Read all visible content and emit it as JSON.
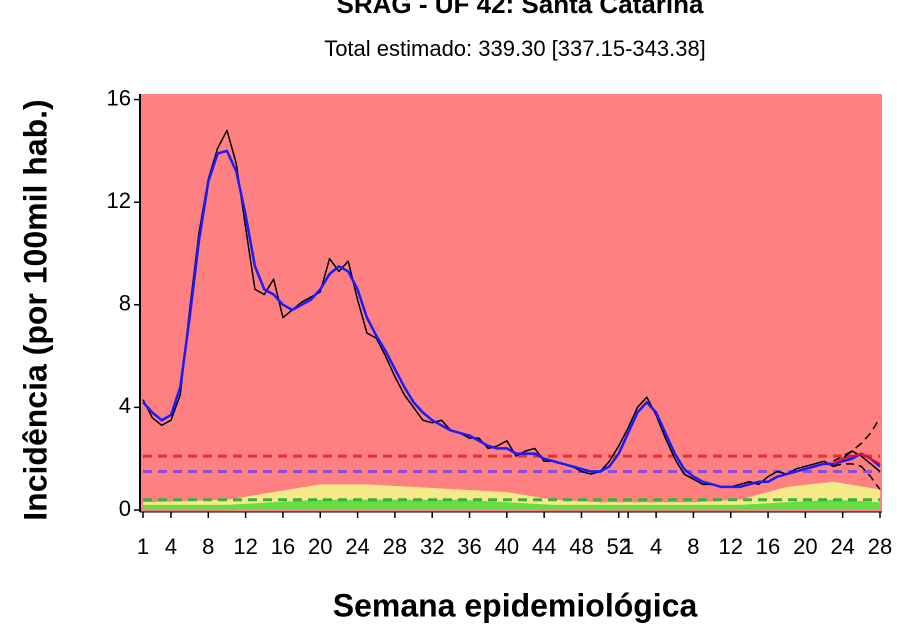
{
  "chart_data": {
    "type": "line",
    "title": "SRAG - UF 42: Santa Catarina",
    "subtitle": "Total estimado: 339.30 [337.15-343.38]",
    "x_label": "Semana epidemiológica",
    "y_label": "Incidência (por 100mil hab.)",
    "background": "#ff8080",
    "xlim": [
      1,
      80
    ],
    "ylim": [
      0,
      16.1
    ],
    "xticks": [
      1,
      4,
      8,
      12,
      16,
      20,
      24,
      28,
      32,
      36,
      40,
      44,
      48,
      52,
      {
        "value": 53,
        "label": "1"
      },
      {
        "value": 56,
        "label": "4"
      },
      {
        "value": 60,
        "label": "8"
      },
      {
        "value": 64,
        "label": "12"
      },
      {
        "value": 68,
        "label": "16"
      },
      {
        "value": 72,
        "label": "20"
      },
      {
        "value": 76,
        "label": "24"
      },
      {
        "value": 80,
        "label": "28"
      }
    ],
    "yticks": [
      0,
      4,
      8,
      12,
      16
    ],
    "hlines": [
      {
        "value": 2.1,
        "color": "#e83030"
      },
      {
        "value": 1.5,
        "color": "#8a4fd8"
      },
      {
        "value": 0.4,
        "color": "#3ab03a"
      }
    ],
    "areas": [
      {
        "color": "#f6e98a",
        "x": [
          1,
          10,
          15,
          20,
          25,
          30,
          35,
          40,
          45,
          50,
          55,
          60,
          65,
          70,
          75,
          80
        ],
        "values": [
          0.3,
          0.4,
          0.7,
          1.0,
          1.0,
          0.9,
          0.8,
          0.7,
          0.4,
          0.3,
          0.3,
          0.3,
          0.4,
          0.9,
          1.1,
          0.8
        ]
      },
      {
        "color": "#66dd44",
        "x": [
          1,
          10,
          15,
          20,
          25,
          30,
          35,
          40,
          45,
          50,
          55,
          60,
          65,
          70,
          75,
          80
        ],
        "values": [
          0.2,
          0.2,
          0.3,
          0.4,
          0.4,
          0.4,
          0.4,
          0.3,
          0.2,
          0.2,
          0.2,
          0.2,
          0.2,
          0.3,
          0.4,
          0.3
        ]
      }
    ],
    "x": [
      1,
      2,
      3,
      4,
      5,
      6,
      7,
      8,
      9,
      10,
      11,
      12,
      13,
      14,
      15,
      16,
      17,
      18,
      19,
      20,
      21,
      22,
      23,
      24,
      25,
      26,
      27,
      28,
      29,
      30,
      31,
      32,
      33,
      34,
      35,
      36,
      37,
      38,
      39,
      40,
      41,
      42,
      43,
      44,
      45,
      46,
      47,
      48,
      49,
      50,
      51,
      52,
      53,
      54,
      55,
      56,
      57,
      58,
      59,
      60,
      61,
      62,
      63,
      64,
      65,
      66,
      67,
      68,
      69,
      70,
      71,
      72,
      73,
      74,
      75,
      76,
      77,
      78,
      79,
      80
    ],
    "series": [
      {
        "color": "#000000",
        "width": 1.5,
        "values": [
          4.3,
          3.6,
          3.3,
          3.5,
          4.5,
          7.8,
          10.8,
          12.9,
          14.1,
          14.8,
          13.5,
          11.0,
          8.6,
          8.4,
          9.0,
          7.5,
          7.8,
          8.1,
          8.3,
          8.5,
          9.8,
          9.3,
          9.7,
          8.2,
          6.9,
          6.7,
          6.0,
          5.2,
          4.5,
          4.0,
          3.5,
          3.4,
          3.5,
          3.1,
          3.0,
          2.8,
          2.8,
          2.4,
          2.5,
          2.7,
          2.1,
          2.3,
          2.4,
          1.9,
          1.9,
          1.8,
          1.7,
          1.5,
          1.4,
          1.5,
          1.9,
          2.5,
          3.2,
          4.0,
          4.4,
          3.7,
          2.8,
          2.0,
          1.4,
          1.2,
          1.0,
          1.0,
          0.9,
          0.9,
          1.0,
          1.1,
          1.0,
          1.3,
          1.5,
          1.4,
          1.6,
          1.7,
          1.8,
          1.9,
          1.7,
          2.0,
          2.3,
          2.1,
          1.8,
          1.5
        ]
      },
      {
        "color": "#1a1aff",
        "width": 2.5,
        "values": [
          4.2,
          3.8,
          3.5,
          3.7,
          4.8,
          7.5,
          10.5,
          12.8,
          13.9,
          14.0,
          13.2,
          11.5,
          9.5,
          8.6,
          8.4,
          8.0,
          7.8,
          8.0,
          8.2,
          8.6,
          9.2,
          9.5,
          9.3,
          8.6,
          7.5,
          6.8,
          6.2,
          5.5,
          4.8,
          4.2,
          3.8,
          3.5,
          3.3,
          3.1,
          3.0,
          2.9,
          2.7,
          2.5,
          2.4,
          2.4,
          2.2,
          2.2,
          2.2,
          2.0,
          1.9,
          1.8,
          1.7,
          1.6,
          1.5,
          1.5,
          1.7,
          2.2,
          3.0,
          3.8,
          4.2,
          3.8,
          3.0,
          2.2,
          1.6,
          1.3,
          1.1,
          1.0,
          0.9,
          0.9,
          0.9,
          1.0,
          1.1,
          1.1,
          1.3,
          1.4,
          1.5,
          1.6,
          1.7,
          1.8,
          1.8,
          1.9,
          2.0,
          2.2,
          2.0,
          1.7
        ]
      },
      {
        "color": "#e8102a",
        "width": 2,
        "x": [
          75,
          76,
          77,
          78,
          79,
          80
        ],
        "values": [
          1.8,
          2.0,
          2.1,
          2.2,
          2.0,
          1.8
        ]
      },
      {
        "color": "#000000",
        "width": 1.5,
        "dash": true,
        "x": [
          75,
          76,
          77,
          78,
          79,
          80
        ],
        "values": [
          1.9,
          2.1,
          2.3,
          2.6,
          3.0,
          3.6
        ]
      },
      {
        "color": "#000000",
        "width": 1.5,
        "dash": true,
        "x": [
          75,
          76,
          77,
          78,
          79,
          80
        ],
        "values": [
          1.7,
          1.8,
          1.8,
          1.7,
          1.3,
          0.8
        ]
      }
    ]
  }
}
